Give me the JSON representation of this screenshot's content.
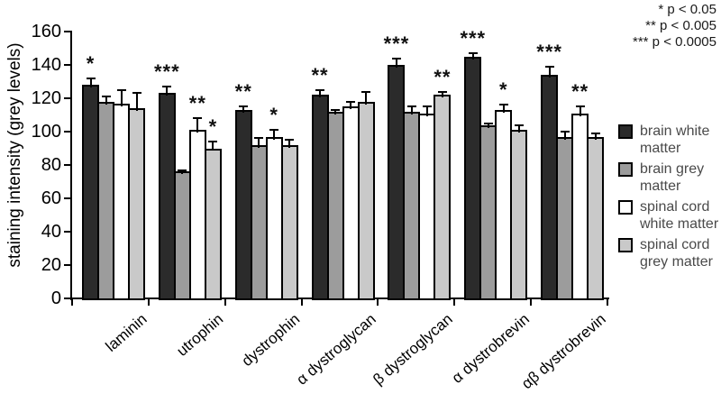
{
  "chart_data": {
    "type": "bar",
    "title": "",
    "xlabel": "",
    "ylabel": "staining intensity (grey levels)",
    "ylim": [
      0,
      160
    ],
    "ytick_step": 20,
    "grid": false,
    "legend_position": "right",
    "categories": [
      "laminin",
      "utrophin",
      "dystrophin",
      "α dystroglycan",
      "β dystroglycan",
      "α dystrobrevin",
      "αβ dystrobrevin"
    ],
    "series": [
      {
        "name": "brain white matter",
        "color": "#2b2b2b",
        "values": [
          128,
          123,
          113,
          122,
          140,
          145,
          134
        ],
        "errors": [
          4,
          4,
          2,
          3,
          4,
          2,
          5
        ]
      },
      {
        "name": "brain grey matter",
        "color": "#9c9c9c",
        "values": [
          118,
          76,
          92,
          112,
          112,
          104,
          97
        ],
        "errors": [
          3,
          1,
          4,
          1,
          3,
          1,
          3
        ]
      },
      {
        "name": "spinal cord white matter",
        "color": "#ffffff",
        "values": [
          117,
          101,
          97,
          115,
          111,
          113,
          111
        ],
        "errors": [
          8,
          7,
          4,
          3,
          4,
          3,
          4
        ]
      },
      {
        "name": "spinal cord grey matter",
        "color": "#c9c9c9",
        "values": [
          114,
          90,
          92,
          118,
          122,
          101,
          97
        ],
        "errors": [
          9,
          4,
          3,
          6,
          2,
          3,
          2
        ]
      }
    ],
    "significance": [
      {
        "category_index": 0,
        "series_index": 0,
        "stars": "*"
      },
      {
        "category_index": 1,
        "series_index": 0,
        "stars": "***"
      },
      {
        "category_index": 1,
        "series_index": 2,
        "stars": "**"
      },
      {
        "category_index": 1,
        "series_index": 3,
        "stars": "*"
      },
      {
        "category_index": 2,
        "series_index": 0,
        "stars": "**"
      },
      {
        "category_index": 2,
        "series_index": 2,
        "stars": "*"
      },
      {
        "category_index": 3,
        "series_index": 0,
        "stars": "**"
      },
      {
        "category_index": 4,
        "series_index": 0,
        "stars": "***"
      },
      {
        "category_index": 4,
        "series_index": 3,
        "stars": "**"
      },
      {
        "category_index": 5,
        "series_index": 0,
        "stars": "***"
      },
      {
        "category_index": 5,
        "series_index": 2,
        "stars": "*"
      },
      {
        "category_index": 6,
        "series_index": 0,
        "stars": "***"
      },
      {
        "category_index": 6,
        "series_index": 2,
        "stars": "**"
      }
    ],
    "significance_legend": [
      "* p < 0.05",
      "** p < 0.005",
      "*** p < 0.0005"
    ]
  }
}
